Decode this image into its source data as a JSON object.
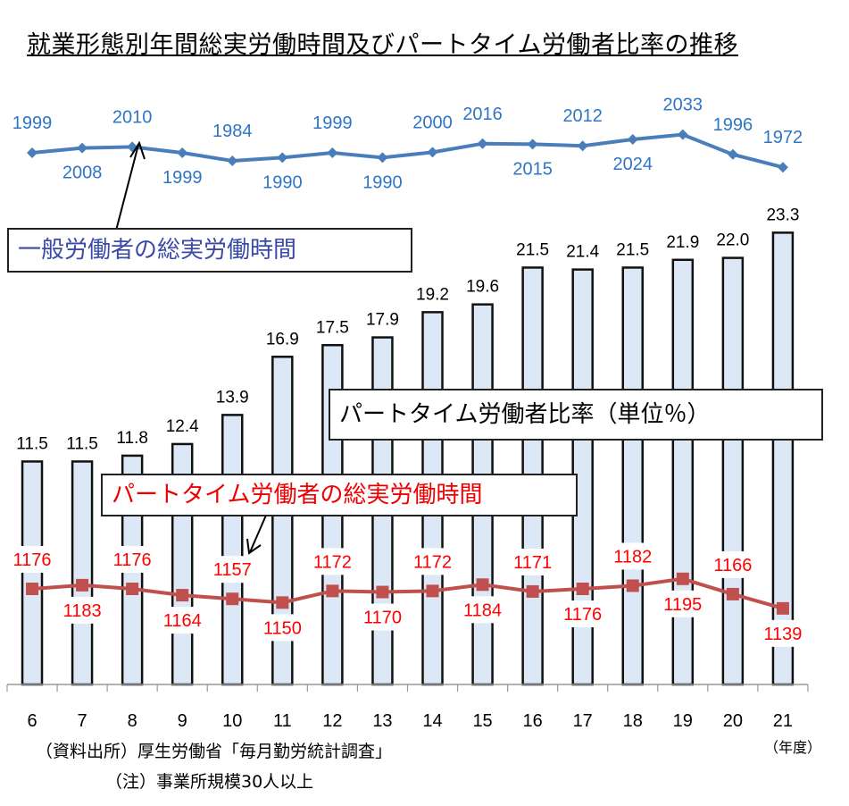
{
  "title": "就業形態別年間総実労働時間及びパートタイム労働者比率の推移",
  "source_note": "（資料出所）厚生労働省「毎月勤労統計調査」",
  "footnote": "（注）事業所規模30人以上",
  "chart_data": {
    "type": "bar+line",
    "categories": [
      "6",
      "7",
      "8",
      "9",
      "10",
      "11",
      "12",
      "13",
      "14",
      "15",
      "16",
      "17",
      "18",
      "19",
      "20",
      "21"
    ],
    "x_unit": "（年度）",
    "series": [
      {
        "name": "パートタイム労働者比率（単位％）",
        "type": "bar",
        "color": "#dce8f5",
        "values": [
          11.5,
          11.5,
          11.8,
          12.4,
          13.9,
          16.9,
          17.5,
          17.9,
          19.2,
          19.6,
          21.5,
          21.4,
          21.5,
          21.9,
          22.0,
          23.3
        ]
      },
      {
        "name": "一般労働者の総実労働時間",
        "type": "line",
        "color": "#4a7ebb",
        "label_color": "#2e75c6",
        "values": [
          1999,
          2008,
          2010,
          1999,
          1984,
          1990,
          1999,
          1990,
          2000,
          2016,
          2015,
          2012,
          2024,
          2033,
          1996,
          1972
        ]
      },
      {
        "name": "パートタイム労働者の総実労働時間",
        "type": "line",
        "color": "#c0504d",
        "label_color": "#ff0000",
        "values": [
          1176,
          1183,
          1176,
          1164,
          1157,
          1150,
          1172,
          1170,
          1172,
          1184,
          1171,
          1176,
          1182,
          1195,
          1166,
          1139
        ]
      }
    ],
    "grid": false
  }
}
